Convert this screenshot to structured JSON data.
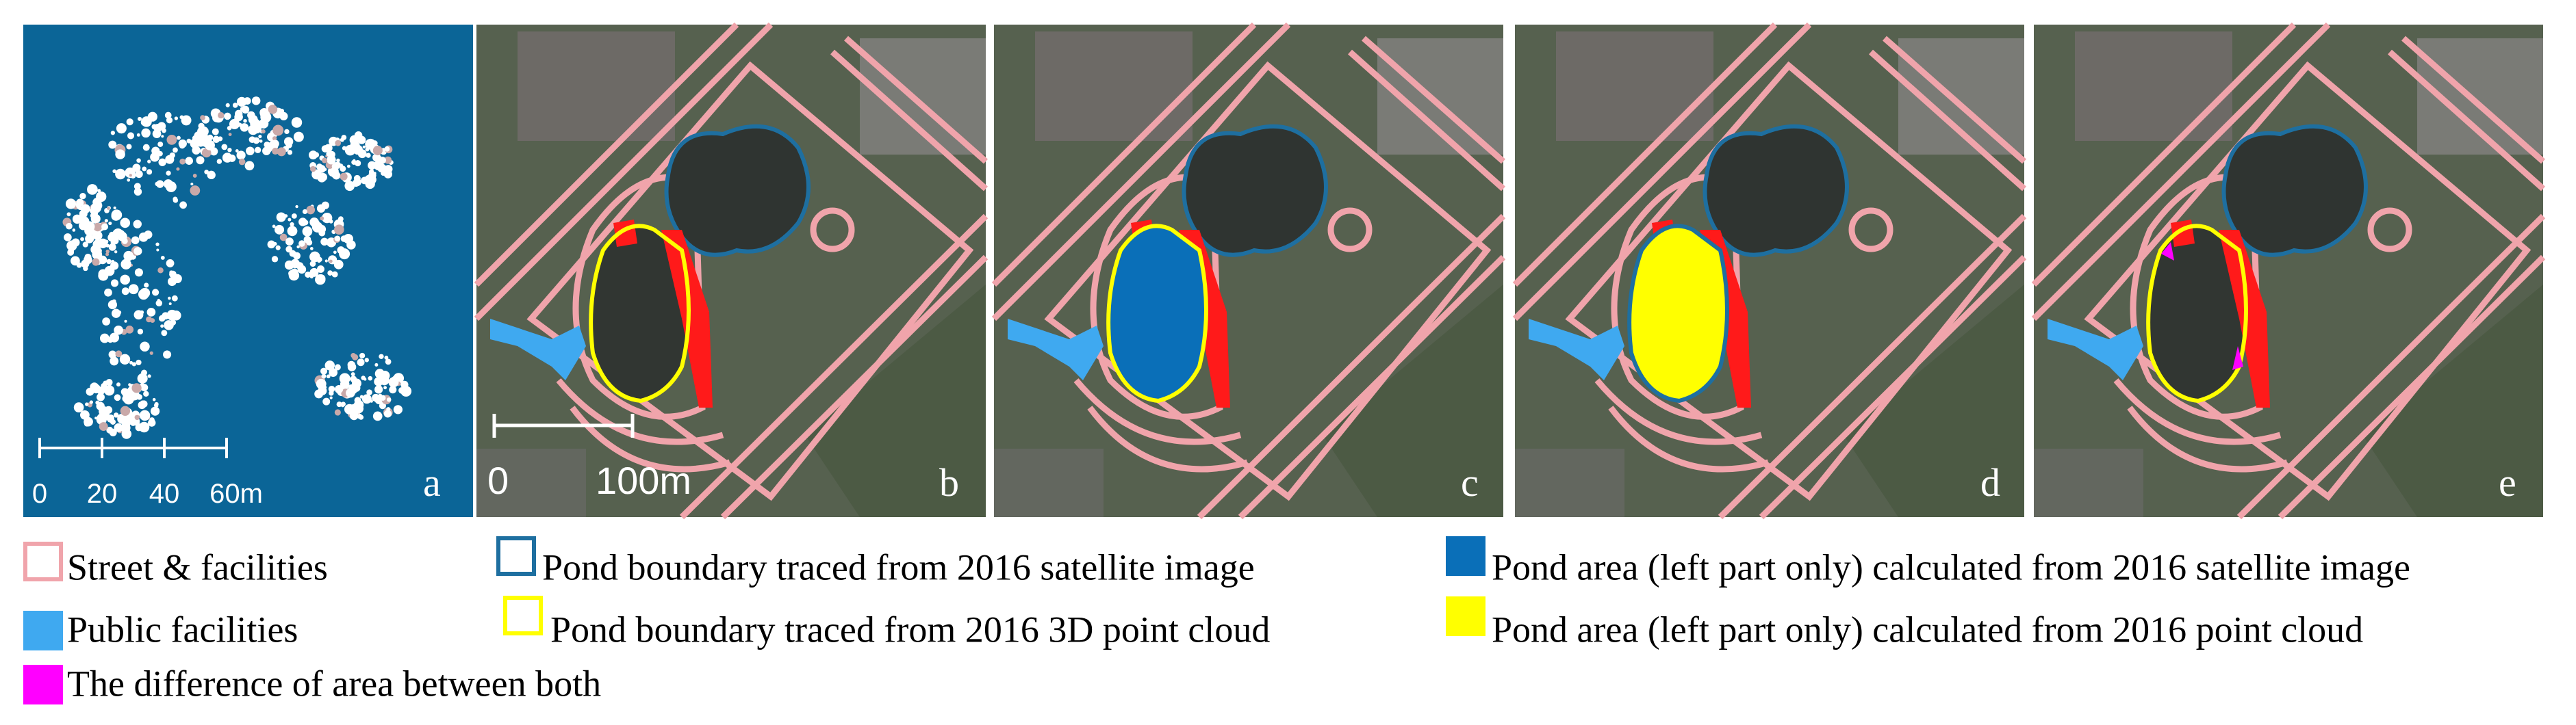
{
  "panels": [
    {
      "label": "a"
    },
    {
      "label": "b"
    },
    {
      "label": "c"
    },
    {
      "label": "d"
    },
    {
      "label": "e"
    }
  ],
  "scale_bars": {
    "a": [
      "0",
      "20",
      "40",
      "60m"
    ],
    "b": [
      "0",
      "100m"
    ]
  },
  "legend": [
    {
      "label": "Street & facilities"
    },
    {
      "label": "Public facilities"
    },
    {
      "label": "The difference of area between both"
    },
    {
      "label": "Pond boundary traced from 2016 satellite image"
    },
    {
      "label": "Pond boundary traced from 2016 3D point cloud"
    },
    {
      "label": "Pond area (left part only) calculated from 2016 satellite image"
    },
    {
      "label": "Pond area (left part only) calculated from 2016 point cloud"
    }
  ]
}
